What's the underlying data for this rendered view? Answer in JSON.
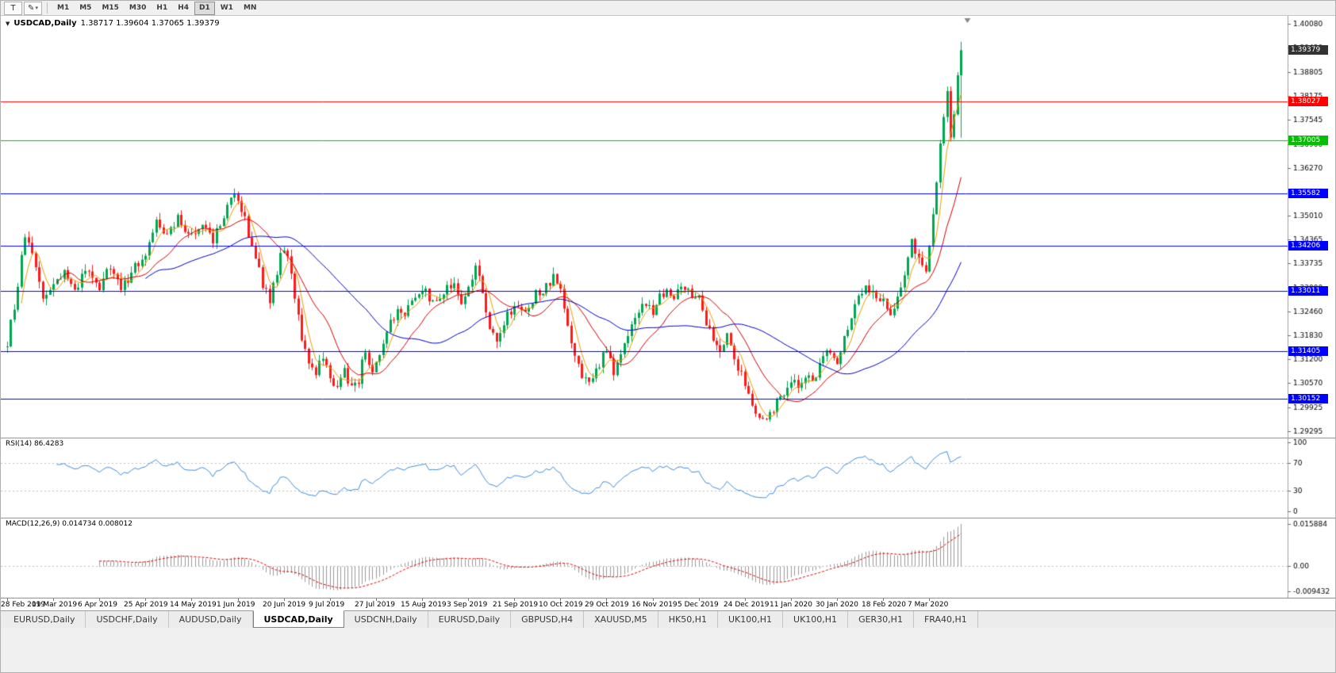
{
  "toolbar": {
    "cursor_tool": "T",
    "timeframes": [
      "M1",
      "M5",
      "M15",
      "M30",
      "H1",
      "H4",
      "D1",
      "W1",
      "MN"
    ],
    "active_timeframe": "D1"
  },
  "icons": {
    "draw_tool": "✎",
    "dropdown_caret": "▾",
    "symbol_dropdown": "▼"
  },
  "chart": {
    "symbol": "USDCAD,Daily",
    "ohlc_text": "1.38717 1.39604 1.37065 1.39379"
  },
  "chart_data": {
    "type": "candlestick",
    "title": "USDCAD,Daily",
    "days_total": 270,
    "last_candle": {
      "open": 1.38717,
      "high": 1.39604,
      "low": 1.37065,
      "close": 1.39379
    },
    "current_price": {
      "value": 1.39379,
      "label": "1.39379",
      "color": "#333333"
    },
    "y_axis": {
      "min": 1.29295,
      "max": 1.4008,
      "ticks": [
        "1.40080",
        "1.39450",
        "1.38805",
        "1.38175",
        "1.37545",
        "1.36900",
        "1.36270",
        "1.35640",
        "1.35010",
        "1.34365",
        "1.33735",
        "1.33090",
        "1.32460",
        "1.31830",
        "1.31200",
        "1.30570",
        "1.29925",
        "1.29295"
      ]
    },
    "x_ticks": [
      {
        "label": "28 Feb 2019",
        "day": 0
      },
      {
        "label": "19 Mar 2019",
        "day": 13
      },
      {
        "label": "6 Apr 2019",
        "day": 26
      },
      {
        "label": "25 Apr 2019",
        "day": 39
      },
      {
        "label": "14 May 2019",
        "day": 52
      },
      {
        "label": "1 Jun 2019",
        "day": 65
      },
      {
        "label": "20 Jun 2019",
        "day": 78
      },
      {
        "label": "9 Jul 2019",
        "day": 91
      },
      {
        "label": "27 Jul 2019",
        "day": 104
      },
      {
        "label": "15 Aug 2019",
        "day": 117
      },
      {
        "label": "3 Sep 2019",
        "day": 130
      },
      {
        "label": "21 Sep 2019",
        "day": 143
      },
      {
        "label": "10 Oct 2019",
        "day": 156
      },
      {
        "label": "29 Oct 2019",
        "day": 169
      },
      {
        "label": "16 Nov 2019",
        "day": 182
      },
      {
        "label": "5 Dec 2019",
        "day": 195
      },
      {
        "label": "24 Dec 2019",
        "day": 208
      },
      {
        "label": "11 Jan 2020",
        "day": 221
      },
      {
        "label": "30 Jan 2020",
        "day": 234
      },
      {
        "label": "18 Feb 2020",
        "day": 247
      },
      {
        "label": "7 Mar 2020",
        "day": 260
      }
    ],
    "horizontal_lines": [
      {
        "price": 1.38027,
        "label": "1.38027",
        "color": "#FF0000"
      },
      {
        "price": 1.37005,
        "label": "1.37005",
        "color": "#00C000"
      },
      {
        "price": 1.35582,
        "label": "1.35582",
        "color": "#0000FF"
      },
      {
        "price": 1.34206,
        "label": "1.34206",
        "color": "#0000FF"
      },
      {
        "price": 1.33011,
        "label": "1.33011",
        "color": "#0000FF"
      },
      {
        "price": 1.31405,
        "label": "1.31405",
        "color": "#0000FF"
      },
      {
        "price": 1.30152,
        "label": "1.30152",
        "color": "#0000FF"
      }
    ],
    "moving_averages": [
      {
        "period": 5,
        "color": "#E8A000"
      },
      {
        "period": 15,
        "color": "#D40000"
      },
      {
        "period": 40,
        "color": "#0000C8"
      }
    ],
    "colors": {
      "bull": "#00A651",
      "bear": "#FF1A1A",
      "background": "#FFFFFF",
      "axis_text": "#000000",
      "axis_line": "#A0A0A0"
    },
    "price_path_anchors": [
      [
        0,
        1.3165
      ],
      [
        2,
        1.326
      ],
      [
        5,
        1.3445
      ],
      [
        8,
        1.336
      ],
      [
        10,
        1.3285
      ],
      [
        13,
        1.3315
      ],
      [
        16,
        1.335
      ],
      [
        19,
        1.3295
      ],
      [
        22,
        1.3355
      ],
      [
        26,
        1.331
      ],
      [
        29,
        1.3365
      ],
      [
        32,
        1.3305
      ],
      [
        35,
        1.335
      ],
      [
        39,
        1.3405
      ],
      [
        42,
        1.348
      ],
      [
        45,
        1.3445
      ],
      [
        48,
        1.349
      ],
      [
        52,
        1.345
      ],
      [
        55,
        1.3485
      ],
      [
        58,
        1.3435
      ],
      [
        61,
        1.35
      ],
      [
        64,
        1.3555
      ],
      [
        66,
        1.352
      ],
      [
        68,
        1.3455
      ],
      [
        70,
        1.339
      ],
      [
        72,
        1.332
      ],
      [
        74,
        1.3275
      ],
      [
        76,
        1.3345
      ],
      [
        77,
        1.341
      ],
      [
        79,
        1.338
      ],
      [
        81,
        1.329
      ],
      [
        83,
        1.3175
      ],
      [
        85,
        1.312
      ],
      [
        87,
        1.3085
      ],
      [
        89,
        1.313
      ],
      [
        91,
        1.3065
      ],
      [
        93,
        1.304
      ],
      [
        95,
        1.309
      ],
      [
        97,
        1.3045
      ],
      [
        99,
        1.3065
      ],
      [
        101,
        1.315
      ],
      [
        103,
        1.308
      ],
      [
        104,
        1.3105
      ],
      [
        106,
        1.316
      ],
      [
        108,
        1.3215
      ],
      [
        110,
        1.325
      ],
      [
        112,
        1.3225
      ],
      [
        114,
        1.328
      ],
      [
        117,
        1.331
      ],
      [
        120,
        1.3265
      ],
      [
        123,
        1.3295
      ],
      [
        126,
        1.3325
      ],
      [
        128,
        1.327
      ],
      [
        130,
        1.331
      ],
      [
        132,
        1.337
      ],
      [
        134,
        1.329
      ],
      [
        136,
        1.32
      ],
      [
        138,
        1.3155
      ],
      [
        140,
        1.322
      ],
      [
        143,
        1.3265
      ],
      [
        146,
        1.324
      ],
      [
        149,
        1.329
      ],
      [
        152,
        1.331
      ],
      [
        154,
        1.3335
      ],
      [
        156,
        1.33
      ],
      [
        158,
        1.32
      ],
      [
        160,
        1.313
      ],
      [
        162,
        1.308
      ],
      [
        164,
        1.3055
      ],
      [
        166,
        1.309
      ],
      [
        169,
        1.315
      ],
      [
        171,
        1.3085
      ],
      [
        173,
        1.3125
      ],
      [
        175,
        1.318
      ],
      [
        177,
        1.3235
      ],
      [
        179,
        1.327
      ],
      [
        182,
        1.325
      ],
      [
        184,
        1.3285
      ],
      [
        186,
        1.331
      ],
      [
        188,
        1.329
      ],
      [
        190,
        1.3325
      ],
      [
        192,
        1.33
      ],
      [
        195,
        1.328
      ],
      [
        197,
        1.322
      ],
      [
        199,
        1.317
      ],
      [
        201,
        1.315
      ],
      [
        203,
        1.3185
      ],
      [
        205,
        1.312
      ],
      [
        208,
        1.306
      ],
      [
        210,
        1.301
      ],
      [
        212,
        1.2962
      ],
      [
        214,
        1.2955
      ],
      [
        216,
        1.2992
      ],
      [
        218,
        1.3022
      ],
      [
        221,
        1.3065
      ],
      [
        223,
        1.305
      ],
      [
        225,
        1.3082
      ],
      [
        227,
        1.3052
      ],
      [
        229,
        1.31
      ],
      [
        231,
        1.314
      ],
      [
        234,
        1.312
      ],
      [
        236,
        1.318
      ],
      [
        238,
        1.3235
      ],
      [
        240,
        1.329
      ],
      [
        242,
        1.332
      ],
      [
        244,
        1.33
      ],
      [
        247,
        1.328
      ],
      [
        249,
        1.3242
      ],
      [
        251,
        1.3282
      ],
      [
        253,
        1.333
      ],
      [
        255,
        1.343
      ],
      [
        257,
        1.339
      ],
      [
        259,
        1.3355
      ],
      [
        260,
        1.342
      ],
      [
        261,
        1.35
      ],
      [
        262,
        1.3585
      ],
      [
        263,
        1.3695
      ],
      [
        264,
        1.376
      ],
      [
        265,
        1.383
      ],
      [
        266,
        1.3705
      ],
      [
        267,
        1.3765
      ],
      [
        268,
        1.3872
      ],
      [
        269,
        1.39379
      ]
    ],
    "indicators": {
      "rsi": {
        "label": "RSI(14) 86.4283",
        "period": 14,
        "last_value": 86.4283,
        "levels": [
          70,
          30
        ],
        "y_ticks": [
          "100",
          "70",
          "30",
          "0"
        ],
        "color": "#3E8EDE"
      },
      "macd": {
        "label": "MACD(12,26,9) 0.014734 0.008012",
        "fast": 12,
        "slow": 26,
        "signal": 9,
        "main_value": 0.014734,
        "signal_value": 0.008012,
        "y_max": 0.015884,
        "y_min": -0.009432,
        "y_ticks": [
          "0.015884",
          "0.00",
          "-0.009432"
        ],
        "histogram_color": "#9A9A9A",
        "signal_color": "#E00000"
      }
    }
  },
  "tabs": {
    "items": [
      {
        "label": "EURUSD,Daily",
        "active": false
      },
      {
        "label": "USDCHF,Daily",
        "active": false
      },
      {
        "label": "AUDUSD,Daily",
        "active": false
      },
      {
        "label": "USDCAD,Daily",
        "active": true
      },
      {
        "label": "USDCNH,Daily",
        "active": false
      },
      {
        "label": "EURUSD,Daily",
        "active": false
      },
      {
        "label": "GBPUSD,H4",
        "active": false
      },
      {
        "label": "XAUUSD,M5",
        "active": false
      },
      {
        "label": "HK50,H1",
        "active": false
      },
      {
        "label": "UK100,H1",
        "active": false
      },
      {
        "label": "UK100,H1",
        "active": false
      },
      {
        "label": "GER30,H1",
        "active": false
      },
      {
        "label": "FRA40,H1",
        "active": false
      }
    ]
  }
}
